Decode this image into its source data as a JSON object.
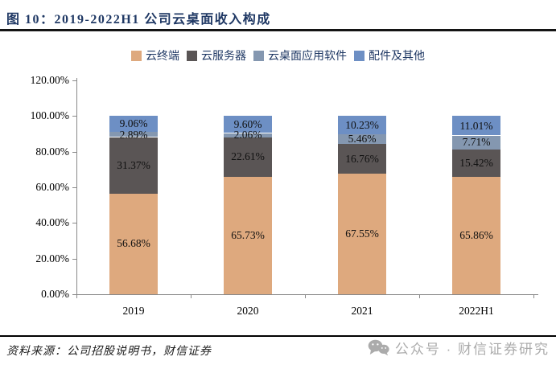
{
  "figure": {
    "title": "图 10：2019-2022H1 公司云桌面收入构成"
  },
  "chart_data": {
    "type": "bar",
    "stacked": true,
    "x_categories": [
      "2019",
      "2020",
      "2021",
      "2022H1"
    ],
    "series": [
      {
        "name": "云终端",
        "color": "#DEA97E",
        "values": [
          56.68,
          65.73,
          67.55,
          65.86
        ]
      },
      {
        "name": "云服务器",
        "color": "#5A5555",
        "values": [
          31.37,
          22.61,
          16.76,
          15.42
        ]
      },
      {
        "name": "云桌面应用软件",
        "color": "#8497B0",
        "values": [
          2.89,
          2.06,
          5.46,
          7.71
        ]
      },
      {
        "name": "配件及其他",
        "color": "#6D8FC4",
        "values": [
          9.06,
          9.6,
          10.23,
          11.01
        ]
      }
    ],
    "ylim": [
      0,
      120
    ],
    "ytick_labels": [
      "0.00%",
      "20.00%",
      "40.00%",
      "60.00%",
      "80.00%",
      "100.00%",
      "120.00%"
    ],
    "grid": false,
    "legend_position": "top",
    "value_label_format": "x.xx%",
    "value_label_position": "inside"
  },
  "footer": {
    "source": "资料来源：公司招股说明书，财信证券",
    "watermark": "公众号 · 财信证券研究",
    "watermark_icon": "wechat-icon"
  },
  "colors": {
    "title_text": "#1F3864",
    "legend_text": "#1F3864",
    "divider": "#141414",
    "axis_line": "#898989",
    "watermark_text": "#ABABAB"
  }
}
